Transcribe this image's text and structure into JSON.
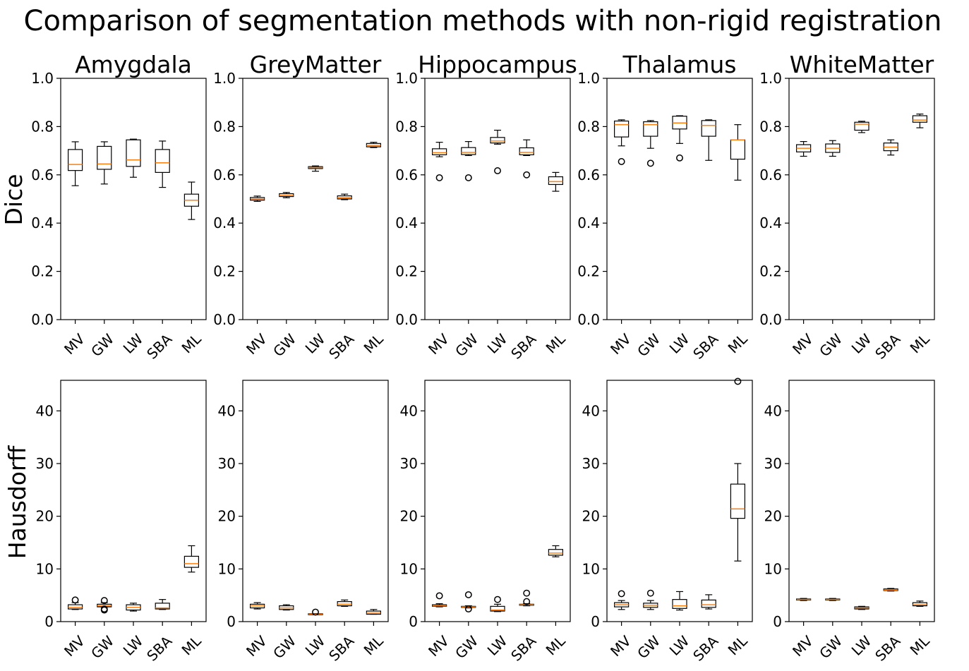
{
  "figure": {
    "title": "Comparison of segmentation methods with non-rigid registration",
    "row_labels": [
      "Dice",
      "Hausdorff"
    ]
  },
  "chart_data": [
    {
      "type": "box",
      "title": "Amygdala",
      "ylabel": "Dice",
      "categories": [
        "MV",
        "GW",
        "LW",
        "SBA",
        "ML"
      ],
      "ylim": [
        0,
        1.0
      ],
      "yticks": [
        "0.0",
        "0.2",
        "0.4",
        "0.6",
        "0.8",
        "1.0"
      ],
      "boxes": [
        {
          "whislo": 0.555,
          "q1": 0.618,
          "med": 0.643,
          "q3": 0.705,
          "whishi": 0.737,
          "fliers": []
        },
        {
          "whislo": 0.562,
          "q1": 0.623,
          "med": 0.645,
          "q3": 0.718,
          "whishi": 0.737,
          "fliers": []
        },
        {
          "whislo": 0.59,
          "q1": 0.635,
          "med": 0.662,
          "q3": 0.745,
          "whishi": 0.748,
          "fliers": []
        },
        {
          "whislo": 0.548,
          "q1": 0.61,
          "med": 0.65,
          "q3": 0.705,
          "whishi": 0.74,
          "fliers": []
        },
        {
          "whislo": 0.415,
          "q1": 0.47,
          "med": 0.495,
          "q3": 0.52,
          "whishi": 0.57,
          "fliers": []
        }
      ]
    },
    {
      "type": "box",
      "title": "GreyMatter",
      "ylabel": "",
      "categories": [
        "MV",
        "GW",
        "LW",
        "SBA",
        "ML"
      ],
      "ylim": [
        0,
        1.0
      ],
      "yticks": [
        "0.0",
        "0.2",
        "0.4",
        "0.6",
        "0.8",
        "1.0"
      ],
      "boxes": [
        {
          "whislo": 0.49,
          "q1": 0.495,
          "med": 0.5,
          "q3": 0.506,
          "whishi": 0.512,
          "fliers": []
        },
        {
          "whislo": 0.505,
          "q1": 0.51,
          "med": 0.515,
          "q3": 0.522,
          "whishi": 0.527,
          "fliers": []
        },
        {
          "whislo": 0.615,
          "q1": 0.626,
          "med": 0.63,
          "q3": 0.634,
          "whishi": 0.637,
          "fliers": []
        },
        {
          "whislo": 0.497,
          "q1": 0.5,
          "med": 0.505,
          "q3": 0.513,
          "whishi": 0.52,
          "fliers": []
        },
        {
          "whislo": 0.713,
          "q1": 0.716,
          "med": 0.722,
          "q3": 0.73,
          "whishi": 0.735,
          "fliers": []
        }
      ]
    },
    {
      "type": "box",
      "title": "Hippocampus",
      "ylabel": "",
      "categories": [
        "MV",
        "GW",
        "LW",
        "SBA",
        "ML"
      ],
      "ylim": [
        0,
        1.0
      ],
      "yticks": [
        "0.0",
        "0.2",
        "0.4",
        "0.6",
        "0.8",
        "1.0"
      ],
      "boxes": [
        {
          "whislo": 0.675,
          "q1": 0.683,
          "med": 0.692,
          "q3": 0.708,
          "whishi": 0.735,
          "fliers": [
            0.588
          ]
        },
        {
          "whislo": 0.68,
          "q1": 0.684,
          "med": 0.693,
          "q3": 0.713,
          "whishi": 0.738,
          "fliers": [
            0.588
          ]
        },
        {
          "whislo": 0.727,
          "q1": 0.732,
          "med": 0.74,
          "q3": 0.755,
          "whishi": 0.785,
          "fliers": [
            0.617
          ]
        },
        {
          "whislo": 0.68,
          "q1": 0.683,
          "med": 0.693,
          "q3": 0.712,
          "whishi": 0.745,
          "fliers": [
            0.6
          ]
        },
        {
          "whislo": 0.532,
          "q1": 0.56,
          "med": 0.572,
          "q3": 0.592,
          "whishi": 0.61,
          "fliers": []
        }
      ]
    },
    {
      "type": "box",
      "title": "Thalamus",
      "ylabel": "",
      "categories": [
        "MV",
        "GW",
        "LW",
        "SBA",
        "ML"
      ],
      "ylim": [
        0,
        1.0
      ],
      "yticks": [
        "0.0",
        "0.2",
        "0.4",
        "0.6",
        "0.8",
        "1.0"
      ],
      "boxes": [
        {
          "whislo": 0.72,
          "q1": 0.757,
          "med": 0.808,
          "q3": 0.823,
          "whishi": 0.828,
          "fliers": [
            0.655
          ]
        },
        {
          "whislo": 0.71,
          "q1": 0.76,
          "med": 0.808,
          "q3": 0.82,
          "whishi": 0.825,
          "fliers": [
            0.648
          ]
        },
        {
          "whislo": 0.73,
          "q1": 0.79,
          "med": 0.815,
          "q3": 0.843,
          "whishi": 0.845,
          "fliers": [
            0.67
          ]
        },
        {
          "whislo": 0.66,
          "q1": 0.76,
          "med": 0.805,
          "q3": 0.825,
          "whishi": 0.828,
          "fliers": []
        },
        {
          "whislo": 0.578,
          "q1": 0.665,
          "med": 0.745,
          "q3": 0.745,
          "whishi": 0.808,
          "fliers": []
        }
      ]
    },
    {
      "type": "box",
      "title": "WhiteMatter",
      "ylabel": "",
      "categories": [
        "MV",
        "GW",
        "LW",
        "SBA",
        "ML"
      ],
      "ylim": [
        0,
        1.0
      ],
      "yticks": [
        "0.0",
        "0.2",
        "0.4",
        "0.6",
        "0.8",
        "1.0"
      ],
      "boxes": [
        {
          "whislo": 0.677,
          "q1": 0.695,
          "med": 0.71,
          "q3": 0.725,
          "whishi": 0.738,
          "fliers": []
        },
        {
          "whislo": 0.677,
          "q1": 0.693,
          "med": 0.71,
          "q3": 0.728,
          "whishi": 0.742,
          "fliers": []
        },
        {
          "whislo": 0.775,
          "q1": 0.785,
          "med": 0.81,
          "q3": 0.818,
          "whishi": 0.822,
          "fliers": []
        },
        {
          "whislo": 0.682,
          "q1": 0.7,
          "med": 0.715,
          "q3": 0.732,
          "whishi": 0.745,
          "fliers": []
        },
        {
          "whislo": 0.795,
          "q1": 0.818,
          "med": 0.827,
          "q3": 0.845,
          "whishi": 0.852,
          "fliers": []
        }
      ]
    },
    {
      "type": "box",
      "title": "",
      "ylabel": "Hausdorff",
      "categories": [
        "MV",
        "GW",
        "LW",
        "SBA",
        "ML"
      ],
      "ylim": [
        0,
        45.8
      ],
      "yticks": [
        "0",
        "10",
        "20",
        "30",
        "40"
      ],
      "boxes": [
        {
          "whislo": 2.3,
          "q1": 2.4,
          "med": 2.7,
          "q3": 3.2,
          "whishi": 3.6,
          "fliers": [
            4.1
          ]
        },
        {
          "whislo": 2.8,
          "q1": 2.8,
          "med": 3.0,
          "q3": 3.3,
          "whishi": 3.6,
          "fliers": [
            4.0,
            2.4,
            2.2
          ]
        },
        {
          "whislo": 2.0,
          "q1": 2.2,
          "med": 2.7,
          "q3": 3.2,
          "whishi": 3.5,
          "fliers": []
        },
        {
          "whislo": 2.3,
          "q1": 2.4,
          "med": 2.6,
          "q3": 3.5,
          "whishi": 4.2,
          "fliers": []
        },
        {
          "whislo": 9.4,
          "q1": 10.3,
          "med": 11.0,
          "q3": 12.4,
          "whishi": 14.4,
          "fliers": []
        }
      ]
    },
    {
      "type": "box",
      "title": "",
      "ylabel": "",
      "categories": [
        "MV",
        "GW",
        "LW",
        "SBA",
        "ML"
      ],
      "ylim": [
        0,
        45.8
      ],
      "yticks": [
        "0",
        "10",
        "20",
        "30",
        "40"
      ],
      "boxes": [
        {
          "whislo": 2.4,
          "q1": 2.6,
          "med": 3.0,
          "q3": 3.3,
          "whishi": 3.6,
          "fliers": []
        },
        {
          "whislo": 2.2,
          "q1": 2.3,
          "med": 2.6,
          "q3": 3.0,
          "whishi": 3.2,
          "fliers": []
        },
        {
          "whislo": 1.3,
          "q1": 1.3,
          "med": 1.4,
          "q3": 1.5,
          "whishi": 1.5,
          "fliers": [
            1.8
          ]
        },
        {
          "whislo": 2.9,
          "q1": 3.0,
          "med": 3.3,
          "q3": 3.8,
          "whishi": 4.1,
          "fliers": []
        },
        {
          "whislo": 1.4,
          "q1": 1.4,
          "med": 1.6,
          "q3": 2.0,
          "whishi": 2.3,
          "fliers": []
        }
      ]
    },
    {
      "type": "box",
      "title": "",
      "ylabel": "",
      "categories": [
        "MV",
        "GW",
        "LW",
        "SBA",
        "ML"
      ],
      "ylim": [
        0,
        45.8
      ],
      "yticks": [
        "0",
        "10",
        "20",
        "30",
        "40"
      ],
      "boxes": [
        {
          "whislo": 2.8,
          "q1": 2.9,
          "med": 3.0,
          "q3": 3.2,
          "whishi": 3.4,
          "fliers": [
            4.9
          ]
        },
        {
          "whislo": 2.6,
          "q1": 2.7,
          "med": 2.8,
          "q3": 2.9,
          "whishi": 3.0,
          "fliers": [
            5.1,
            2.4
          ]
        },
        {
          "whislo": 1.9,
          "q1": 2.0,
          "med": 2.2,
          "q3": 2.9,
          "whishi": 3.3,
          "fliers": [
            4.2
          ]
        },
        {
          "whislo": 3.0,
          "q1": 3.1,
          "med": 3.2,
          "q3": 3.3,
          "whishi": 3.4,
          "fliers": [
            5.4,
            3.8
          ]
        },
        {
          "whislo": 12.3,
          "q1": 12.6,
          "med": 13.0,
          "q3": 13.7,
          "whishi": 14.4,
          "fliers": []
        }
      ]
    },
    {
      "type": "box",
      "title": "",
      "ylabel": "",
      "categories": [
        "MV",
        "GW",
        "LW",
        "SBA",
        "ML"
      ],
      "ylim": [
        0,
        45.8
      ],
      "yticks": [
        "0",
        "10",
        "20",
        "30",
        "40"
      ],
      "boxes": [
        {
          "whislo": 2.3,
          "q1": 2.8,
          "med": 3.2,
          "q3": 3.6,
          "whishi": 4.0,
          "fliers": [
            5.3
          ]
        },
        {
          "whislo": 2.3,
          "q1": 2.7,
          "med": 3.1,
          "q3": 3.5,
          "whishi": 4.0,
          "fliers": [
            5.4
          ]
        },
        {
          "whislo": 2.2,
          "q1": 2.5,
          "med": 3.0,
          "q3": 4.2,
          "whishi": 5.7,
          "fliers": []
        },
        {
          "whislo": 2.4,
          "q1": 2.7,
          "med": 3.2,
          "q3": 4.1,
          "whishi": 5.1,
          "fliers": []
        },
        {
          "whislo": 11.5,
          "q1": 19.6,
          "med": 21.4,
          "q3": 26.1,
          "whishi": 30.0,
          "fliers": [
            45.6
          ]
        }
      ]
    },
    {
      "type": "box",
      "title": "",
      "ylabel": "",
      "categories": [
        "MV",
        "GW",
        "LW",
        "SBA",
        "ML"
      ],
      "ylim": [
        0,
        45.8
      ],
      "yticks": [
        "0",
        "10",
        "20",
        "30",
        "40"
      ],
      "boxes": [
        {
          "whislo": 4.0,
          "q1": 4.1,
          "med": 4.2,
          "q3": 4.3,
          "whishi": 4.4,
          "fliers": []
        },
        {
          "whislo": 4.0,
          "q1": 4.1,
          "med": 4.2,
          "q3": 4.3,
          "whishi": 4.4,
          "fliers": []
        },
        {
          "whislo": 2.3,
          "q1": 2.4,
          "med": 2.6,
          "q3": 2.8,
          "whishi": 2.9,
          "fliers": []
        },
        {
          "whislo": 5.8,
          "q1": 5.9,
          "med": 6.0,
          "q3": 6.2,
          "whishi": 6.3,
          "fliers": []
        },
        {
          "whislo": 2.9,
          "q1": 3.0,
          "med": 3.2,
          "q3": 3.6,
          "whishi": 3.9,
          "fliers": []
        }
      ]
    }
  ]
}
